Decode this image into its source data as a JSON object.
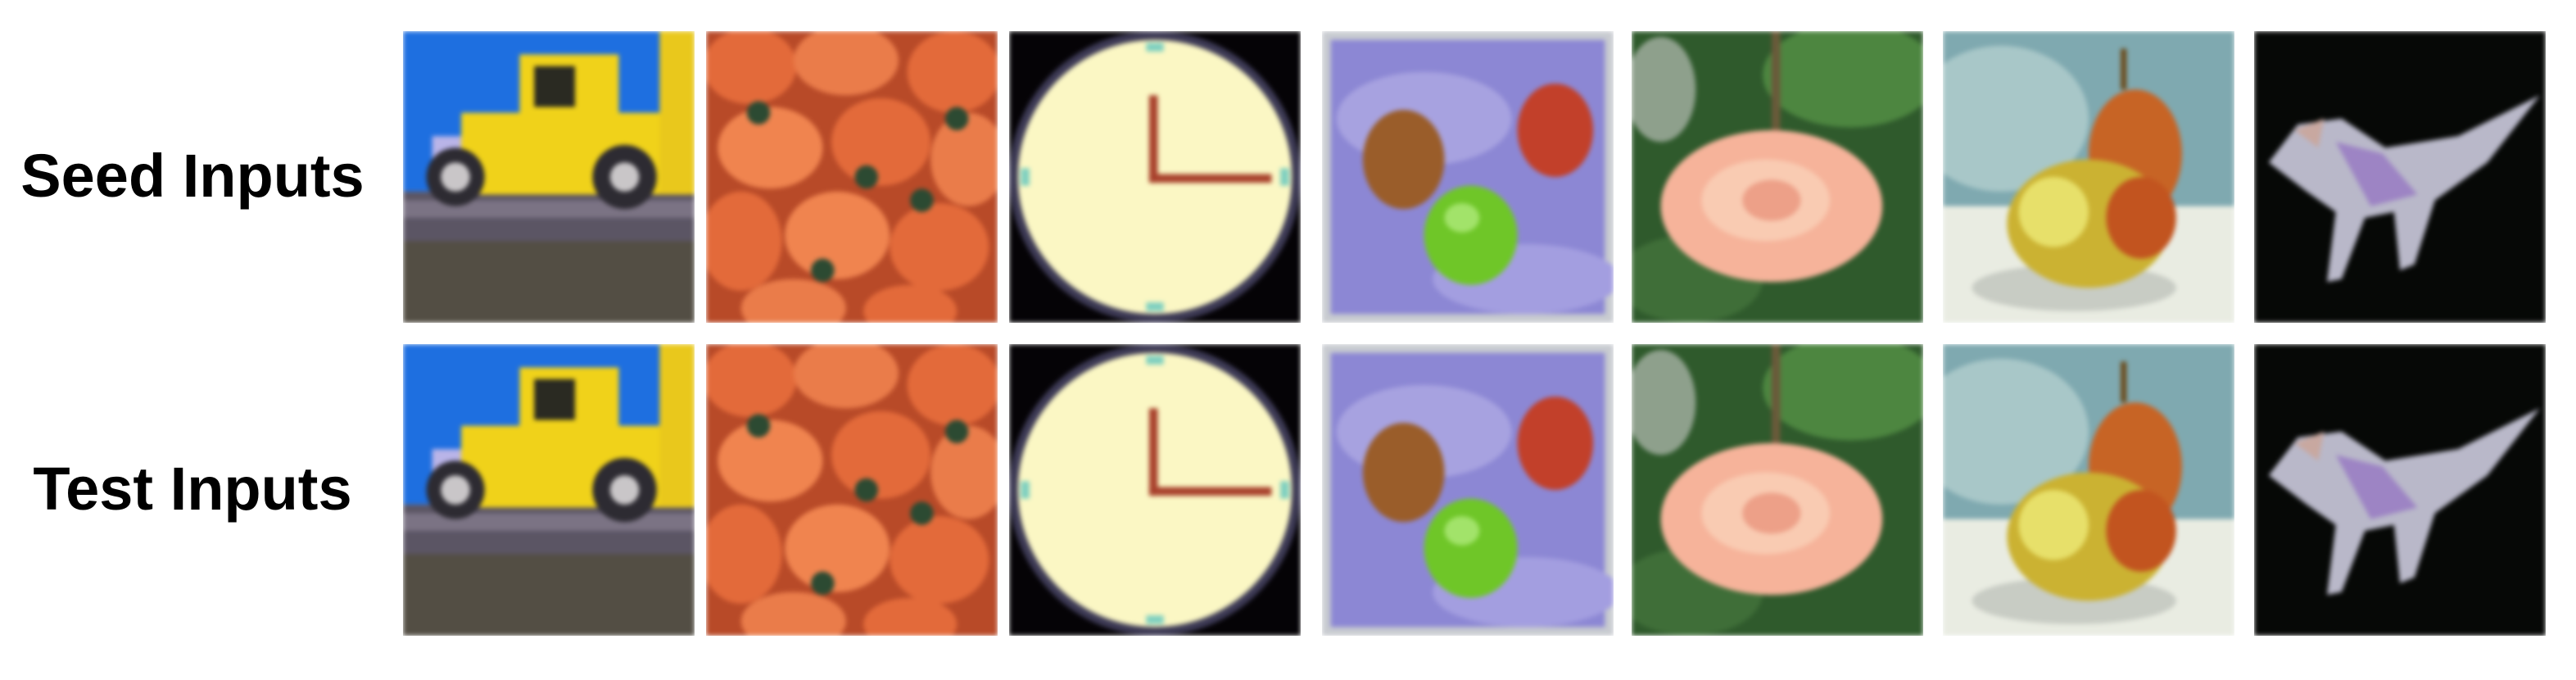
{
  "rows": [
    {
      "label": "Seed Inputs"
    },
    {
      "label": "Test Inputs"
    }
  ],
  "images": [
    "truck",
    "peppers",
    "clock",
    "apples",
    "rose",
    "pear",
    "dinosaur"
  ],
  "colors": {
    "sky": "#1e6fe0",
    "truck": "#f0d21a",
    "pepper": "#e36a3a",
    "clock_face": "#fbf7c4",
    "cloth": "#8c87d4",
    "apple_green": "#6fc628",
    "rose": "#f6b39a",
    "leaf": "#2f5a2c",
    "pear": "#cbb232",
    "dino": "#b9b8c9"
  }
}
